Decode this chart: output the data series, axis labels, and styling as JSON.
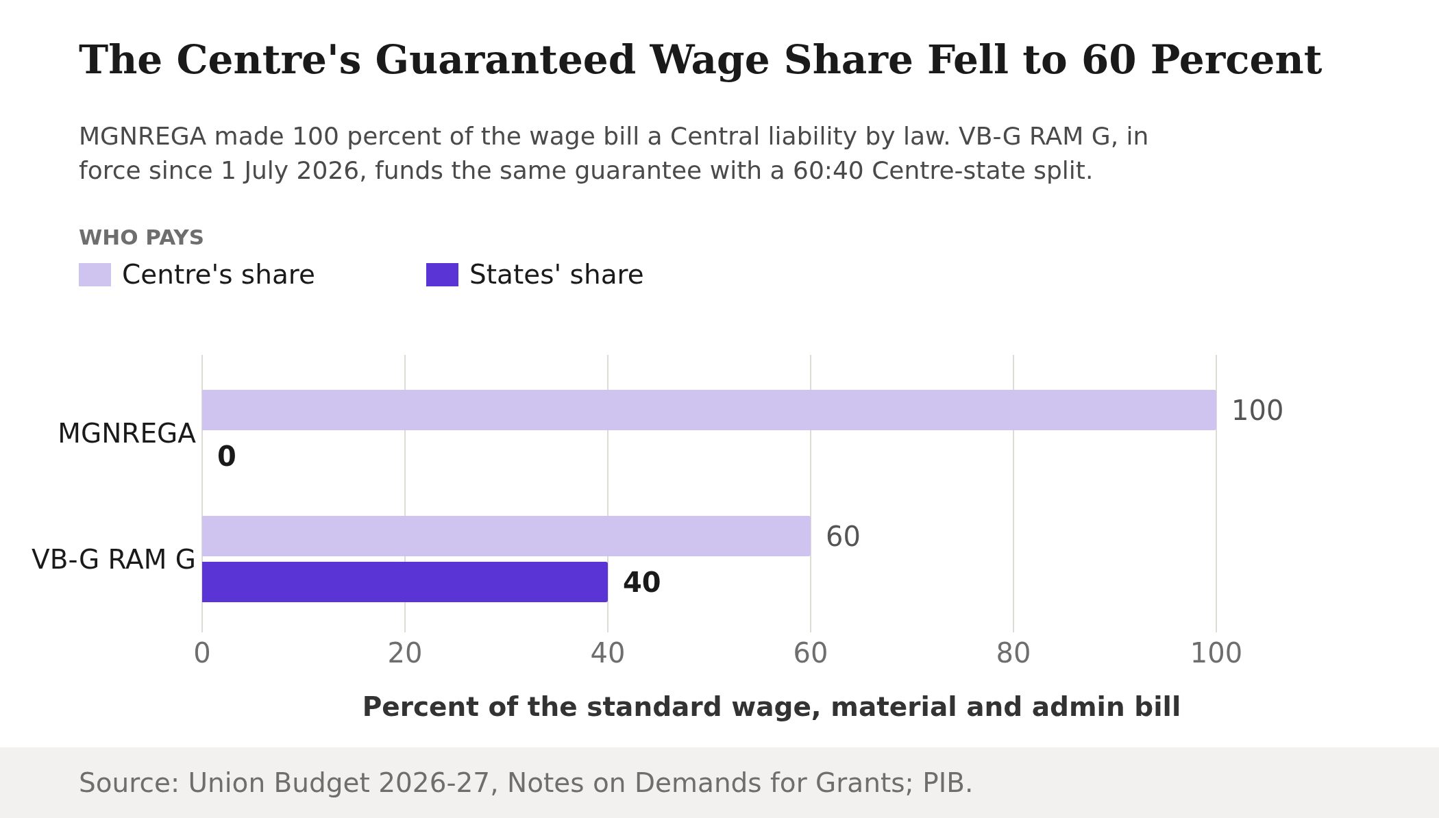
{
  "chart_data": {
    "type": "bar",
    "orientation": "horizontal",
    "title": "The Centre's Guaranteed Wage Share Fell to 60 Percent",
    "subtitle": "MGNREGA made 100 percent of the wage bill a Central liability by law. VB-G RAM G, in force since 1 July 2026, funds the same guarantee with a 60:40 Centre-state split.",
    "legend_title": "WHO PAYS",
    "xlabel": "Percent of the standard wage, material and admin bill",
    "categories": [
      "MGNREGA",
      "VB-G RAM G"
    ],
    "series": [
      {
        "name": "Centre's share",
        "color": "#cfc4f0",
        "values": [
          100,
          60
        ]
      },
      {
        "name": "States' share",
        "color": "#5b34d6",
        "values": [
          0,
          40
        ]
      }
    ],
    "xlim": [
      0,
      100
    ],
    "xticks": [
      0,
      20,
      40,
      60,
      80,
      100
    ],
    "grid": "x",
    "legend": "top left",
    "data_labels": true,
    "annotations": [
      "Source: Union Budget 2026-27, Notes on Demands for Grants; PIB."
    ]
  }
}
